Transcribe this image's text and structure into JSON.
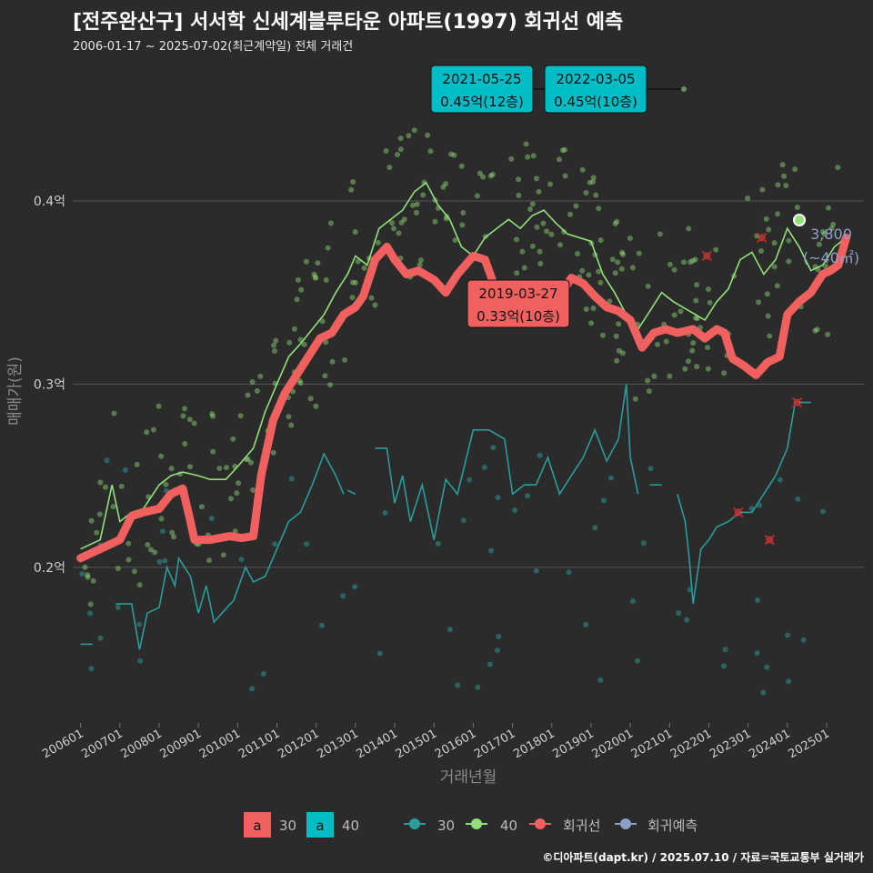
{
  "header": {
    "title": "[전주완산구] 서서학 신세계블루타운 아파트(1997) 회귀선 예측",
    "subtitle": "2006-01-17 ~ 2025-07-02(최근계약일) 전체 거래건"
  },
  "footer": "©디아파트(dapt.kr) / 2025.07.10 / 자료=국토교통부 실거래가",
  "colors": {
    "s30": "#2a9d9b",
    "s40": "#93e07a",
    "reg": "#f0605e",
    "pred": "#8fa0c8",
    "box_teal": "#00bcc4"
  },
  "chart_data": {
    "type": "line",
    "xlabel": "거래년월",
    "ylabel": "매매가(원)",
    "x_ticks": [
      "200601",
      "200701",
      "200801",
      "200901",
      "201001",
      "201101",
      "201201",
      "201301",
      "201401",
      "201501",
      "201601",
      "201701",
      "201801",
      "201901",
      "202001",
      "202101",
      "202201",
      "202301",
      "202401",
      "202501"
    ],
    "y_ticks": [
      {
        "v": 0.2,
        "label": "0.2억"
      },
      {
        "v": 0.3,
        "label": "0.3억"
      },
      {
        "v": 0.4,
        "label": "0.4억"
      }
    ],
    "xlim": [
      2005.8,
      2025.95
    ],
    "ylim": [
      0.115,
      0.475
    ],
    "series": [
      {
        "name": "회귀선",
        "points": [
          [
            2006.0,
            0.205
          ],
          [
            2006.5,
            0.21
          ],
          [
            2007.0,
            0.215
          ],
          [
            2007.3,
            0.228
          ],
          [
            2007.6,
            0.23
          ],
          [
            2008.0,
            0.232
          ],
          [
            2008.3,
            0.24
          ],
          [
            2008.6,
            0.243
          ],
          [
            2008.8,
            0.225
          ],
          [
            2008.9,
            0.215
          ],
          [
            2009.3,
            0.215
          ],
          [
            2009.8,
            0.217
          ],
          [
            2010.1,
            0.216
          ],
          [
            2010.4,
            0.217
          ],
          [
            2010.6,
            0.25
          ],
          [
            2010.9,
            0.28
          ],
          [
            2011.2,
            0.295
          ],
          [
            2011.5,
            0.305
          ],
          [
            2011.8,
            0.315
          ],
          [
            2012.1,
            0.325
          ],
          [
            2012.4,
            0.328
          ],
          [
            2012.7,
            0.338
          ],
          [
            2013.0,
            0.342
          ],
          [
            2013.2,
            0.348
          ],
          [
            2013.5,
            0.368
          ],
          [
            2013.8,
            0.375
          ],
          [
            2014.0,
            0.368
          ],
          [
            2014.3,
            0.36
          ],
          [
            2014.6,
            0.362
          ],
          [
            2015.0,
            0.357
          ],
          [
            2015.3,
            0.35
          ],
          [
            2015.6,
            0.36
          ],
          [
            2016.0,
            0.37
          ],
          [
            2016.3,
            0.368
          ],
          [
            2016.6,
            0.35
          ],
          [
            2017.0,
            0.348
          ],
          [
            2017.3,
            0.338
          ],
          [
            2017.6,
            0.338
          ],
          [
            2017.9,
            0.338
          ],
          [
            2018.2,
            0.348
          ],
          [
            2018.5,
            0.358
          ],
          [
            2018.8,
            0.355
          ],
          [
            2019.1,
            0.348
          ],
          [
            2019.4,
            0.342
          ],
          [
            2019.7,
            0.34
          ],
          [
            2020.0,
            0.335
          ],
          [
            2020.3,
            0.32
          ],
          [
            2020.6,
            0.328
          ],
          [
            2020.9,
            0.33
          ],
          [
            2021.2,
            0.328
          ],
          [
            2021.6,
            0.33
          ],
          [
            2021.9,
            0.325
          ],
          [
            2022.2,
            0.33
          ],
          [
            2022.4,
            0.328
          ],
          [
            2022.6,
            0.314
          ],
          [
            2022.9,
            0.31
          ],
          [
            2023.2,
            0.305
          ],
          [
            2023.5,
            0.312
          ],
          [
            2023.8,
            0.315
          ],
          [
            2024.0,
            0.338
          ],
          [
            2024.3,
            0.345
          ],
          [
            2024.6,
            0.35
          ],
          [
            2024.9,
            0.36
          ],
          [
            2025.1,
            0.362
          ],
          [
            2025.3,
            0.365
          ],
          [
            2025.5,
            0.38
          ]
        ]
      },
      {
        "name": "40",
        "points": [
          [
            2006.0,
            0.21
          ],
          [
            2006.5,
            0.215
          ],
          [
            2006.8,
            0.245
          ],
          [
            2007.0,
            0.225
          ],
          [
            2007.3,
            0.23
          ],
          [
            2007.6,
            0.232
          ],
          [
            2008.0,
            0.245
          ],
          [
            2008.3,
            0.25
          ],
          [
            2008.6,
            0.252
          ],
          [
            2009.0,
            0.25
          ],
          [
            2009.3,
            0.248
          ],
          [
            2009.7,
            0.248
          ],
          [
            2010.0,
            0.255
          ],
          [
            2010.4,
            0.265
          ],
          [
            2010.7,
            0.285
          ],
          [
            2011.0,
            0.3
          ],
          [
            2011.3,
            0.315
          ],
          [
            2011.6,
            0.322
          ],
          [
            2011.9,
            0.33
          ],
          [
            2012.2,
            0.338
          ],
          [
            2012.5,
            0.35
          ],
          [
            2012.8,
            0.36
          ],
          [
            2013.0,
            0.37
          ],
          [
            2013.3,
            0.365
          ],
          [
            2013.6,
            0.385
          ],
          [
            2013.9,
            0.39
          ],
          [
            2014.2,
            0.395
          ],
          [
            2014.5,
            0.405
          ],
          [
            2014.8,
            0.41
          ],
          [
            2015.1,
            0.398
          ],
          [
            2015.4,
            0.39
          ],
          [
            2015.7,
            0.375
          ],
          [
            2016.0,
            0.37
          ],
          [
            2016.3,
            0.38
          ],
          [
            2016.6,
            0.385
          ],
          [
            2016.9,
            0.39
          ],
          [
            2017.2,
            0.385
          ],
          [
            2017.5,
            0.392
          ],
          [
            2017.8,
            0.395
          ],
          [
            2018.1,
            0.388
          ],
          [
            2018.4,
            0.382
          ],
          [
            2018.7,
            0.38
          ],
          [
            2019.0,
            0.378
          ],
          [
            2019.3,
            0.36
          ],
          [
            2019.6,
            0.35
          ],
          [
            2019.9,
            0.338
          ],
          [
            2020.2,
            0.33
          ],
          [
            2020.5,
            0.34
          ],
          [
            2020.8,
            0.35
          ],
          [
            2021.1,
            0.345
          ],
          [
            2021.5,
            0.34
          ],
          [
            2021.9,
            0.335
          ],
          [
            2022.2,
            0.345
          ],
          [
            2022.5,
            0.352
          ],
          [
            2022.8,
            0.368
          ],
          [
            2023.1,
            0.372
          ],
          [
            2023.4,
            0.36
          ],
          [
            2023.7,
            0.368
          ],
          [
            2024.0,
            0.385
          ],
          [
            2024.3,
            0.375
          ],
          [
            2024.6,
            0.362
          ],
          [
            2024.9,
            0.365
          ],
          [
            2025.2,
            0.375
          ],
          [
            2025.5,
            0.38
          ]
        ]
      },
      {
        "name": "30",
        "segments": [
          [
            [
              2006.0,
              0.158
            ],
            [
              2006.3,
              0.158
            ]
          ],
          [
            [
              2006.9,
              0.18
            ],
            [
              2007.3,
              0.18
            ],
            [
              2007.5,
              0.155
            ],
            [
              2007.7,
              0.175
            ],
            [
              2008.0,
              0.178
            ],
            [
              2008.2,
              0.2
            ],
            [
              2008.4,
              0.19
            ],
            [
              2008.5,
              0.205
            ],
            [
              2008.8,
              0.195
            ],
            [
              2009.0,
              0.175
            ],
            [
              2009.2,
              0.19
            ],
            [
              2009.4,
              0.17
            ],
            [
              2009.6,
              0.175
            ],
            [
              2009.9,
              0.182
            ],
            [
              2010.2,
              0.2
            ],
            [
              2010.4,
              0.192
            ],
            [
              2010.7,
              0.195
            ],
            [
              2011.0,
              0.21
            ],
            [
              2011.3,
              0.225
            ],
            [
              2011.6,
              0.23
            ],
            [
              2011.9,
              0.245
            ],
            [
              2012.2,
              0.262
            ],
            [
              2012.5,
              0.25
            ],
            [
              2012.7,
              0.24
            ]
          ],
          [
            [
              2012.8,
              0.242
            ],
            [
              2013.0,
              0.24
            ]
          ],
          [
            [
              2013.5,
              0.265
            ],
            [
              2013.8,
              0.265
            ],
            [
              2014.0,
              0.235
            ],
            [
              2014.2,
              0.25
            ],
            [
              2014.4,
              0.225
            ],
            [
              2014.7,
              0.245
            ],
            [
              2015.0,
              0.215
            ],
            [
              2015.3,
              0.248
            ],
            [
              2015.6,
              0.24
            ],
            [
              2016.0,
              0.275
            ],
            [
              2016.4,
              0.275
            ],
            [
              2016.8,
              0.27
            ],
            [
              2017.0,
              0.24
            ],
            [
              2017.3,
              0.245
            ],
            [
              2017.6,
              0.245
            ],
            [
              2017.9,
              0.26
            ],
            [
              2018.2,
              0.24
            ],
            [
              2018.5,
              0.25
            ],
            [
              2018.8,
              0.26
            ],
            [
              2019.1,
              0.275
            ],
            [
              2019.4,
              0.258
            ],
            [
              2019.7,
              0.27
            ],
            [
              2019.9,
              0.3
            ],
            [
              2020.0,
              0.26
            ],
            [
              2020.2,
              0.24
            ]
          ],
          [
            [
              2020.5,
              0.245
            ],
            [
              2020.8,
              0.245
            ]
          ],
          [
            [
              2021.2,
              0.24
            ],
            [
              2021.4,
              0.225
            ],
            [
              2021.5,
              0.205
            ],
            [
              2021.6,
              0.18
            ],
            [
              2021.8,
              0.21
            ],
            [
              2022.0,
              0.215
            ],
            [
              2022.2,
              0.222
            ],
            [
              2022.5,
              0.225
            ],
            [
              2022.8,
              0.23
            ],
            [
              2023.1,
              0.23
            ],
            [
              2023.4,
              0.24
            ],
            [
              2023.7,
              0.25
            ],
            [
              2024.0,
              0.265
            ],
            [
              2024.2,
              0.29
            ],
            [
              2024.6,
              0.29
            ]
          ]
        ]
      }
    ],
    "annotations": [
      {
        "date": "2021-05-25",
        "value": "0.45억(12층)",
        "kind": "max"
      },
      {
        "date": "2022-03-05",
        "value": "0.45억(10층)",
        "kind": "max"
      },
      {
        "date": "2019-03-27",
        "value": "0.33억(10층)",
        "kind": "reg"
      }
    ],
    "prediction_label": {
      "line1": "3,800",
      "line2": "(~40㎡)"
    },
    "legend": {
      "box_items": [
        "30",
        "40"
      ],
      "line_items": [
        "30",
        "40",
        "회귀선",
        "회귀예측"
      ],
      "box_glyph": "a"
    }
  }
}
